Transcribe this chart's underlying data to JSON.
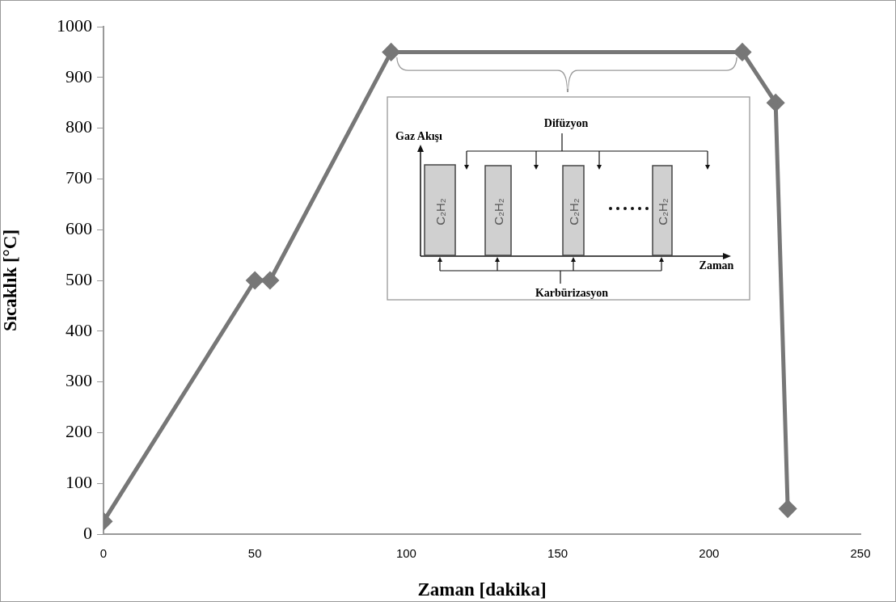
{
  "chart_data": {
    "type": "line",
    "xlabel": "Zaman [dakika]",
    "ylabel": "Sıcaklık [°C]",
    "x": [
      0,
      50,
      55,
      95,
      211,
      222,
      226
    ],
    "series": [
      {
        "color": "#777777",
        "values": [
          25,
          500,
          500,
          950,
          950,
          850,
          50
        ]
      }
    ],
    "xlim": [
      0,
      250
    ],
    "xticks": [
      0,
      50,
      100,
      150,
      200,
      250
    ],
    "ylim": [
      0,
      1000
    ],
    "yticks": [
      0,
      100,
      200,
      300,
      400,
      500,
      600,
      700,
      800,
      900,
      1000
    ],
    "grid": false,
    "legend": false,
    "marker": "diamond",
    "line_style": "solid",
    "annotations": [
      "Difüzyon",
      "Gaz Akışı",
      "Zaman",
      "Karbürizasyon",
      "C₂H₂",
      "C₂H₂",
      "C₂H₂",
      "C₂H₂"
    ]
  }
}
